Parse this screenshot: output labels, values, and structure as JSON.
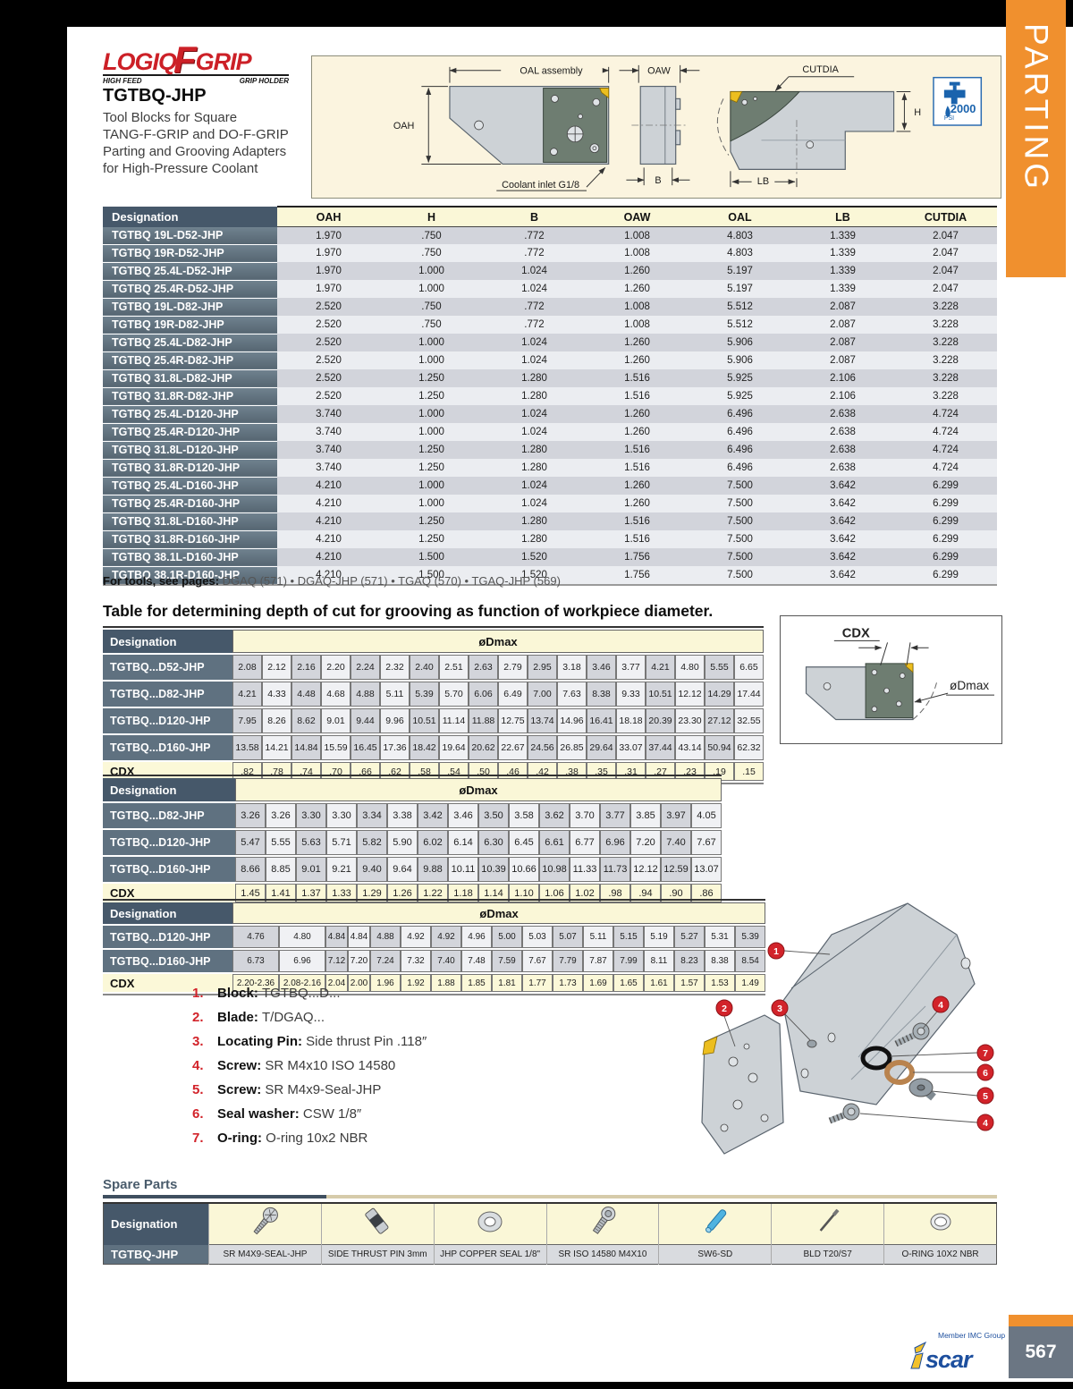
{
  "page": {
    "number": "567",
    "section_tab": "PARTING"
  },
  "brand": {
    "logo_main": "LOGIQ",
    "logo_f": "F",
    "logo_grip": "GRIP",
    "sub_left": "HIGH FEED",
    "sub_right": "GRIP HOLDER",
    "iscar_i": "i",
    "iscar_rest": "scar",
    "member": "Member IMC Group"
  },
  "header": {
    "title": "TGTBQ-JHP",
    "description_lines": [
      "Tool Blocks for Square",
      "TANG-F-GRIP and DO-F-GRIP",
      "Parting and Grooving Adapters",
      "for High-Pressure Coolant"
    ]
  },
  "diagram": {
    "oal": "OAL assembly",
    "oaw": "OAW",
    "cutdia": "CUTDIA",
    "oah": "OAH",
    "coolant": "Coolant inlet G1/8",
    "b": "B",
    "lb": "LB",
    "h": "H",
    "psi_value": "2000",
    "psi_unit": "PSI"
  },
  "main_table": {
    "headers": [
      "Designation",
      "OAH",
      "H",
      "B",
      "OAW",
      "OAL",
      "LB",
      "CUTDIA"
    ],
    "rows": [
      {
        "designation": "TGTBQ 19L-D52-JHP",
        "values": [
          "1.970",
          ".750",
          ".772",
          "1.008",
          "4.803",
          "1.339",
          "2.047"
        ]
      },
      {
        "designation": "TGTBQ 19R-D52-JHP",
        "values": [
          "1.970",
          ".750",
          ".772",
          "1.008",
          "4.803",
          "1.339",
          "2.047"
        ]
      },
      {
        "designation": "TGTBQ 25.4L-D52-JHP",
        "values": [
          "1.970",
          "1.000",
          "1.024",
          "1.260",
          "5.197",
          "1.339",
          "2.047"
        ]
      },
      {
        "designation": "TGTBQ 25.4R-D52-JHP",
        "values": [
          "1.970",
          "1.000",
          "1.024",
          "1.260",
          "5.197",
          "1.339",
          "2.047"
        ]
      },
      {
        "designation": "TGTBQ 19L-D82-JHP",
        "values": [
          "2.520",
          ".750",
          ".772",
          "1.008",
          "5.512",
          "2.087",
          "3.228"
        ]
      },
      {
        "designation": "TGTBQ 19R-D82-JHP",
        "values": [
          "2.520",
          ".750",
          ".772",
          "1.008",
          "5.512",
          "2.087",
          "3.228"
        ]
      },
      {
        "designation": "TGTBQ 25.4L-D82-JHP",
        "values": [
          "2.520",
          "1.000",
          "1.024",
          "1.260",
          "5.906",
          "2.087",
          "3.228"
        ]
      },
      {
        "designation": "TGTBQ 25.4R-D82-JHP",
        "values": [
          "2.520",
          "1.000",
          "1.024",
          "1.260",
          "5.906",
          "2.087",
          "3.228"
        ]
      },
      {
        "designation": "TGTBQ 31.8L-D82-JHP",
        "values": [
          "2.520",
          "1.250",
          "1.280",
          "1.516",
          "5.925",
          "2.106",
          "3.228"
        ]
      },
      {
        "designation": "TGTBQ 31.8R-D82-JHP",
        "values": [
          "2.520",
          "1.250",
          "1.280",
          "1.516",
          "5.925",
          "2.106",
          "3.228"
        ]
      },
      {
        "designation": "TGTBQ 25.4L-D120-JHP",
        "values": [
          "3.740",
          "1.000",
          "1.024",
          "1.260",
          "6.496",
          "2.638",
          "4.724"
        ]
      },
      {
        "designation": "TGTBQ 25.4R-D120-JHP",
        "values": [
          "3.740",
          "1.000",
          "1.024",
          "1.260",
          "6.496",
          "2.638",
          "4.724"
        ]
      },
      {
        "designation": "TGTBQ 31.8L-D120-JHP",
        "values": [
          "3.740",
          "1.250",
          "1.280",
          "1.516",
          "6.496",
          "2.638",
          "4.724"
        ]
      },
      {
        "designation": "TGTBQ 31.8R-D120-JHP",
        "values": [
          "3.740",
          "1.250",
          "1.280",
          "1.516",
          "6.496",
          "2.638",
          "4.724"
        ]
      },
      {
        "designation": "TGTBQ 25.4L-D160-JHP",
        "values": [
          "4.210",
          "1.000",
          "1.024",
          "1.260",
          "7.500",
          "3.642",
          "6.299"
        ]
      },
      {
        "designation": "TGTBQ 25.4R-D160-JHP",
        "values": [
          "4.210",
          "1.000",
          "1.024",
          "1.260",
          "7.500",
          "3.642",
          "6.299"
        ]
      },
      {
        "designation": "TGTBQ 31.8L-D160-JHP",
        "values": [
          "4.210",
          "1.250",
          "1.280",
          "1.516",
          "7.500",
          "3.642",
          "6.299"
        ]
      },
      {
        "designation": "TGTBQ 31.8R-D160-JHP",
        "values": [
          "4.210",
          "1.250",
          "1.280",
          "1.516",
          "7.500",
          "3.642",
          "6.299"
        ]
      },
      {
        "designation": "TGTBQ 38.1L-D160-JHP",
        "values": [
          "4.210",
          "1.500",
          "1.520",
          "1.756",
          "7.500",
          "3.642",
          "6.299"
        ]
      },
      {
        "designation": "TGTBQ 38.1R-D160-JHP",
        "values": [
          "4.210",
          "1.500",
          "1.520",
          "1.756",
          "7.500",
          "3.642",
          "6.299"
        ]
      }
    ]
  },
  "tools_note": {
    "label": "For tools, see pages:",
    "links": "DGAQ (571) • DGAQ-JHP (571) • TGAQ (570) • TGAQ-JHP (569)"
  },
  "depth_section": {
    "title": "Table for determining depth of cut for grooving as function of workpiece diameter.",
    "designation_header": "Designation",
    "dmax_header": "øDmax",
    "cdx_label": "CDX",
    "tables": [
      {
        "rows": [
          {
            "label": "TGTBQ...D52-JHP",
            "values": [
              "2.08",
              "2.12",
              "2.16",
              "2.20",
              "2.24",
              "2.32",
              "2.40",
              "2.51",
              "2.63",
              "2.79",
              "2.95",
              "3.18",
              "3.46",
              "3.77",
              "4.21",
              "4.80",
              "5.55",
              "6.65"
            ]
          },
          {
            "label": "TGTBQ...D82-JHP",
            "values": [
              "4.21",
              "4.33",
              "4.48",
              "4.68",
              "4.88",
              "5.11",
              "5.39",
              "5.70",
              "6.06",
              "6.49",
              "7.00",
              "7.63",
              "8.38",
              "9.33",
              "10.51",
              "12.12",
              "14.29",
              "17.44"
            ]
          },
          {
            "label": "TGTBQ...D120-JHP",
            "values": [
              "7.95",
              "8.26",
              "8.62",
              "9.01",
              "9.44",
              "9.96",
              "10.51",
              "11.14",
              "11.88",
              "12.75",
              "13.74",
              "14.96",
              "16.41",
              "18.18",
              "20.39",
              "23.30",
              "27.12",
              "32.55"
            ]
          },
          {
            "label": "TGTBQ...D160-JHP",
            "values": [
              "13.58",
              "14.21",
              "14.84",
              "15.59",
              "16.45",
              "17.36",
              "18.42",
              "19.64",
              "20.62",
              "22.67",
              "24.56",
              "26.85",
              "29.64",
              "33.07",
              "37.44",
              "43.14",
              "50.94",
              "62.32"
            ]
          }
        ],
        "cdx_values": [
          ".82",
          ".78",
          ".74",
          ".70",
          ".66",
          ".62",
          ".58",
          ".54",
          ".50",
          ".46",
          ".42",
          ".38",
          ".35",
          ".31",
          ".27",
          ".23",
          ".19",
          ".15"
        ]
      },
      {
        "rows": [
          {
            "label": "TGTBQ...D82-JHP",
            "values": [
              "3.26",
              "3.26",
              "3.30",
              "3.30",
              "3.34",
              "3.38",
              "3.42",
              "3.46",
              "3.50",
              "3.58",
              "3.62",
              "3.70",
              "3.77",
              "3.85",
              "3.97",
              "4.05"
            ]
          },
          {
            "label": "TGTBQ...D120-JHP",
            "values": [
              "5.47",
              "5.55",
              "5.63",
              "5.71",
              "5.82",
              "5.90",
              "6.02",
              "6.14",
              "6.30",
              "6.45",
              "6.61",
              "6.77",
              "6.96",
              "7.20",
              "7.40",
              "7.67"
            ]
          },
          {
            "label": "TGTBQ...D160-JHP",
            "values": [
              "8.66",
              "8.85",
              "9.01",
              "9.21",
              "9.40",
              "9.64",
              "9.88",
              "10.11",
              "10.39",
              "10.66",
              "10.98",
              "11.33",
              "11.73",
              "12.12",
              "12.59",
              "13.07"
            ]
          }
        ],
        "cdx_values": [
          "1.45",
          "1.41",
          "1.37",
          "1.33",
          "1.29",
          "1.26",
          "1.22",
          "1.18",
          "1.14",
          "1.10",
          "1.06",
          "1.02",
          ".98",
          ".94",
          ".90",
          ".86"
        ]
      },
      {
        "rows": [
          {
            "label": "TGTBQ...D120-JHP",
            "values": [
              "4.76",
              "4.80",
              "4.84",
              "4.84",
              "4.88",
              "4.92",
              "4.92",
              "4.96",
              "5.00",
              "5.03",
              "5.07",
              "5.11",
              "5.15",
              "5.19",
              "5.27",
              "5.31",
              "5.39"
            ]
          },
          {
            "label": "TGTBQ...D160-JHP",
            "values": [
              "6.73",
              "6.96",
              "7.12",
              "7.20",
              "7.24",
              "7.32",
              "7.40",
              "7.48",
              "7.59",
              "7.67",
              "7.79",
              "7.87",
              "7.99",
              "8.11",
              "8.23",
              "8.38",
              "8.54"
            ]
          }
        ],
        "cdx_values": [
          "2.20-2.36",
          "2.08-2.16",
          "2.04",
          "2.00",
          "1.96",
          "1.92",
          "1.88",
          "1.85",
          "1.81",
          "1.77",
          "1.73",
          "1.69",
          "1.65",
          "1.61",
          "1.57",
          "1.53",
          "1.49"
        ]
      }
    ]
  },
  "cdx_diagram": {
    "cdx": "CDX",
    "dmax": "øDmax"
  },
  "parts_list": [
    {
      "num": "1.",
      "label": "Block:",
      "value": "TGTBQ...D..."
    },
    {
      "num": "2.",
      "label": "Blade:",
      "value": "T/DGAQ..."
    },
    {
      "num": "3.",
      "label": "Locating Pin:",
      "value": "Side thrust Pin .118″"
    },
    {
      "num": "4.",
      "label": "Screw:",
      "value": "SR M4x10 ISO 14580"
    },
    {
      "num": "5.",
      "label": "Screw:",
      "value": "SR M4x9-Seal-JHP"
    },
    {
      "num": "6.",
      "label": "Seal washer:",
      "value": "CSW 1/8″"
    },
    {
      "num": "7.",
      "label": "O-ring:",
      "value": "O-ring 10x2 NBR"
    }
  ],
  "exploded_callouts": [
    "1",
    "2",
    "3",
    "4",
    "7",
    "6",
    "5",
    "4"
  ],
  "spare_parts": {
    "title": "Spare Parts",
    "designation_header": "Designation",
    "row_label": "TGTBQ-JHP",
    "items": [
      {
        "icon": "seal-screw-icon",
        "label": "SR M4X9-SEAL-JHP"
      },
      {
        "icon": "side-thrust-pin-icon",
        "label": "SIDE THRUST PIN 3mm"
      },
      {
        "icon": "copper-seal-icon",
        "label": "JHP COPPER SEAL 1/8\""
      },
      {
        "icon": "socket-screw-icon",
        "label": "SR ISO 14580 M4X10"
      },
      {
        "icon": "torx-key-icon",
        "label": "SW6-SD"
      },
      {
        "icon": "blade-driver-icon",
        "label": "BLD T20/S7"
      },
      {
        "icon": "o-ring-icon",
        "label": "O-RING 10X2 NBR"
      }
    ]
  },
  "colors": {
    "accent_orange": "#F0902E",
    "header_slate": "#46586A",
    "row_slate": "#5F7180",
    "pale_yellow": "#FAF7D7",
    "red_accent": "#D2232A",
    "blue_brand": "#1D4F9E"
  }
}
